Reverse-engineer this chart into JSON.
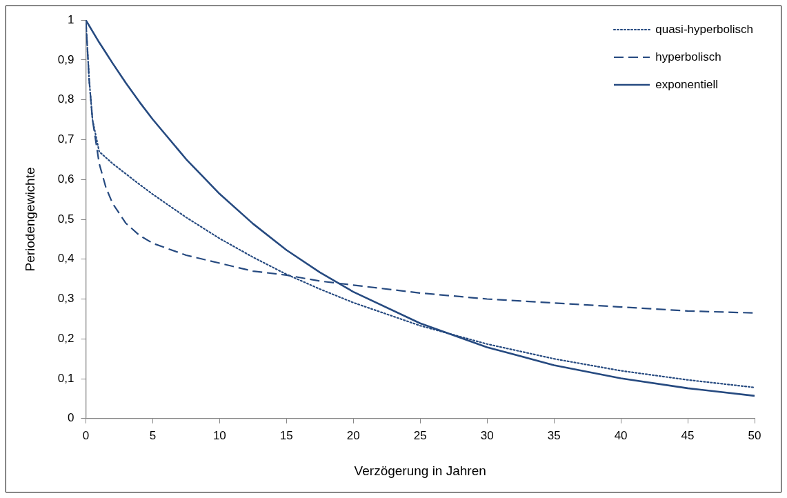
{
  "chart_data": {
    "type": "line",
    "xlabel": "Verzögerung in Jahren",
    "ylabel": "Periodengewichte",
    "xlim": [
      0,
      50
    ],
    "xticks": [
      0,
      5,
      10,
      15,
      20,
      25,
      30,
      35,
      40,
      45,
      50
    ],
    "ylim": [
      0,
      1
    ],
    "yticks": [
      0,
      {
        "value": 0.1,
        "label": "0,1"
      },
      {
        "value": 0.2,
        "label": "0,2"
      },
      {
        "value": 0.3,
        "label": "0,3"
      },
      {
        "value": 0.4,
        "label": "0,4"
      },
      {
        "value": 0.5,
        "label": "0,5"
      },
      {
        "value": 0.6,
        "label": "0,6"
      },
      {
        "value": 0.7,
        "label": "0,7"
      },
      {
        "value": 0.8,
        "label": "0,8"
      },
      {
        "value": 0.9,
        "label": "0,9"
      },
      1
    ],
    "grid": false,
    "legend": "top right",
    "marker": "none",
    "x": [
      0,
      0.25,
      0.5,
      1,
      1.5,
      2,
      3,
      4,
      5,
      7.5,
      10,
      12.5,
      15,
      17.5,
      20,
      25,
      30,
      35,
      40,
      45,
      50
    ],
    "series": [
      {
        "name": "quasi-hyperbolisch",
        "color": "#264a80",
        "line_style": "dotted",
        "values": [
          1,
          0.85,
          0.75,
          0.67,
          0.655,
          0.64,
          0.614,
          0.588,
          0.563,
          0.505,
          0.452,
          0.405,
          0.362,
          0.325,
          0.291,
          0.233,
          0.187,
          0.15,
          0.12,
          0.097,
          0.078
        ]
      },
      {
        "name": "hyperbolisch",
        "color": "#264a80",
        "line_style": "dashed",
        "values": [
          1,
          0.85,
          0.75,
          0.64,
          0.58,
          0.54,
          0.49,
          0.46,
          0.44,
          0.41,
          0.39,
          0.37,
          0.36,
          0.345,
          0.335,
          0.315,
          0.3,
          0.29,
          0.28,
          0.27,
          0.265
        ]
      },
      {
        "name": "exponentiell",
        "color": "#264a80",
        "line_style": "solid",
        "values": [
          1,
          0.986,
          0.972,
          0.944,
          0.918,
          0.892,
          0.842,
          0.795,
          0.751,
          0.651,
          0.564,
          0.489,
          0.423,
          0.367,
          0.318,
          0.239,
          0.179,
          0.134,
          0.101,
          0.076,
          0.057
        ]
      }
    ]
  }
}
